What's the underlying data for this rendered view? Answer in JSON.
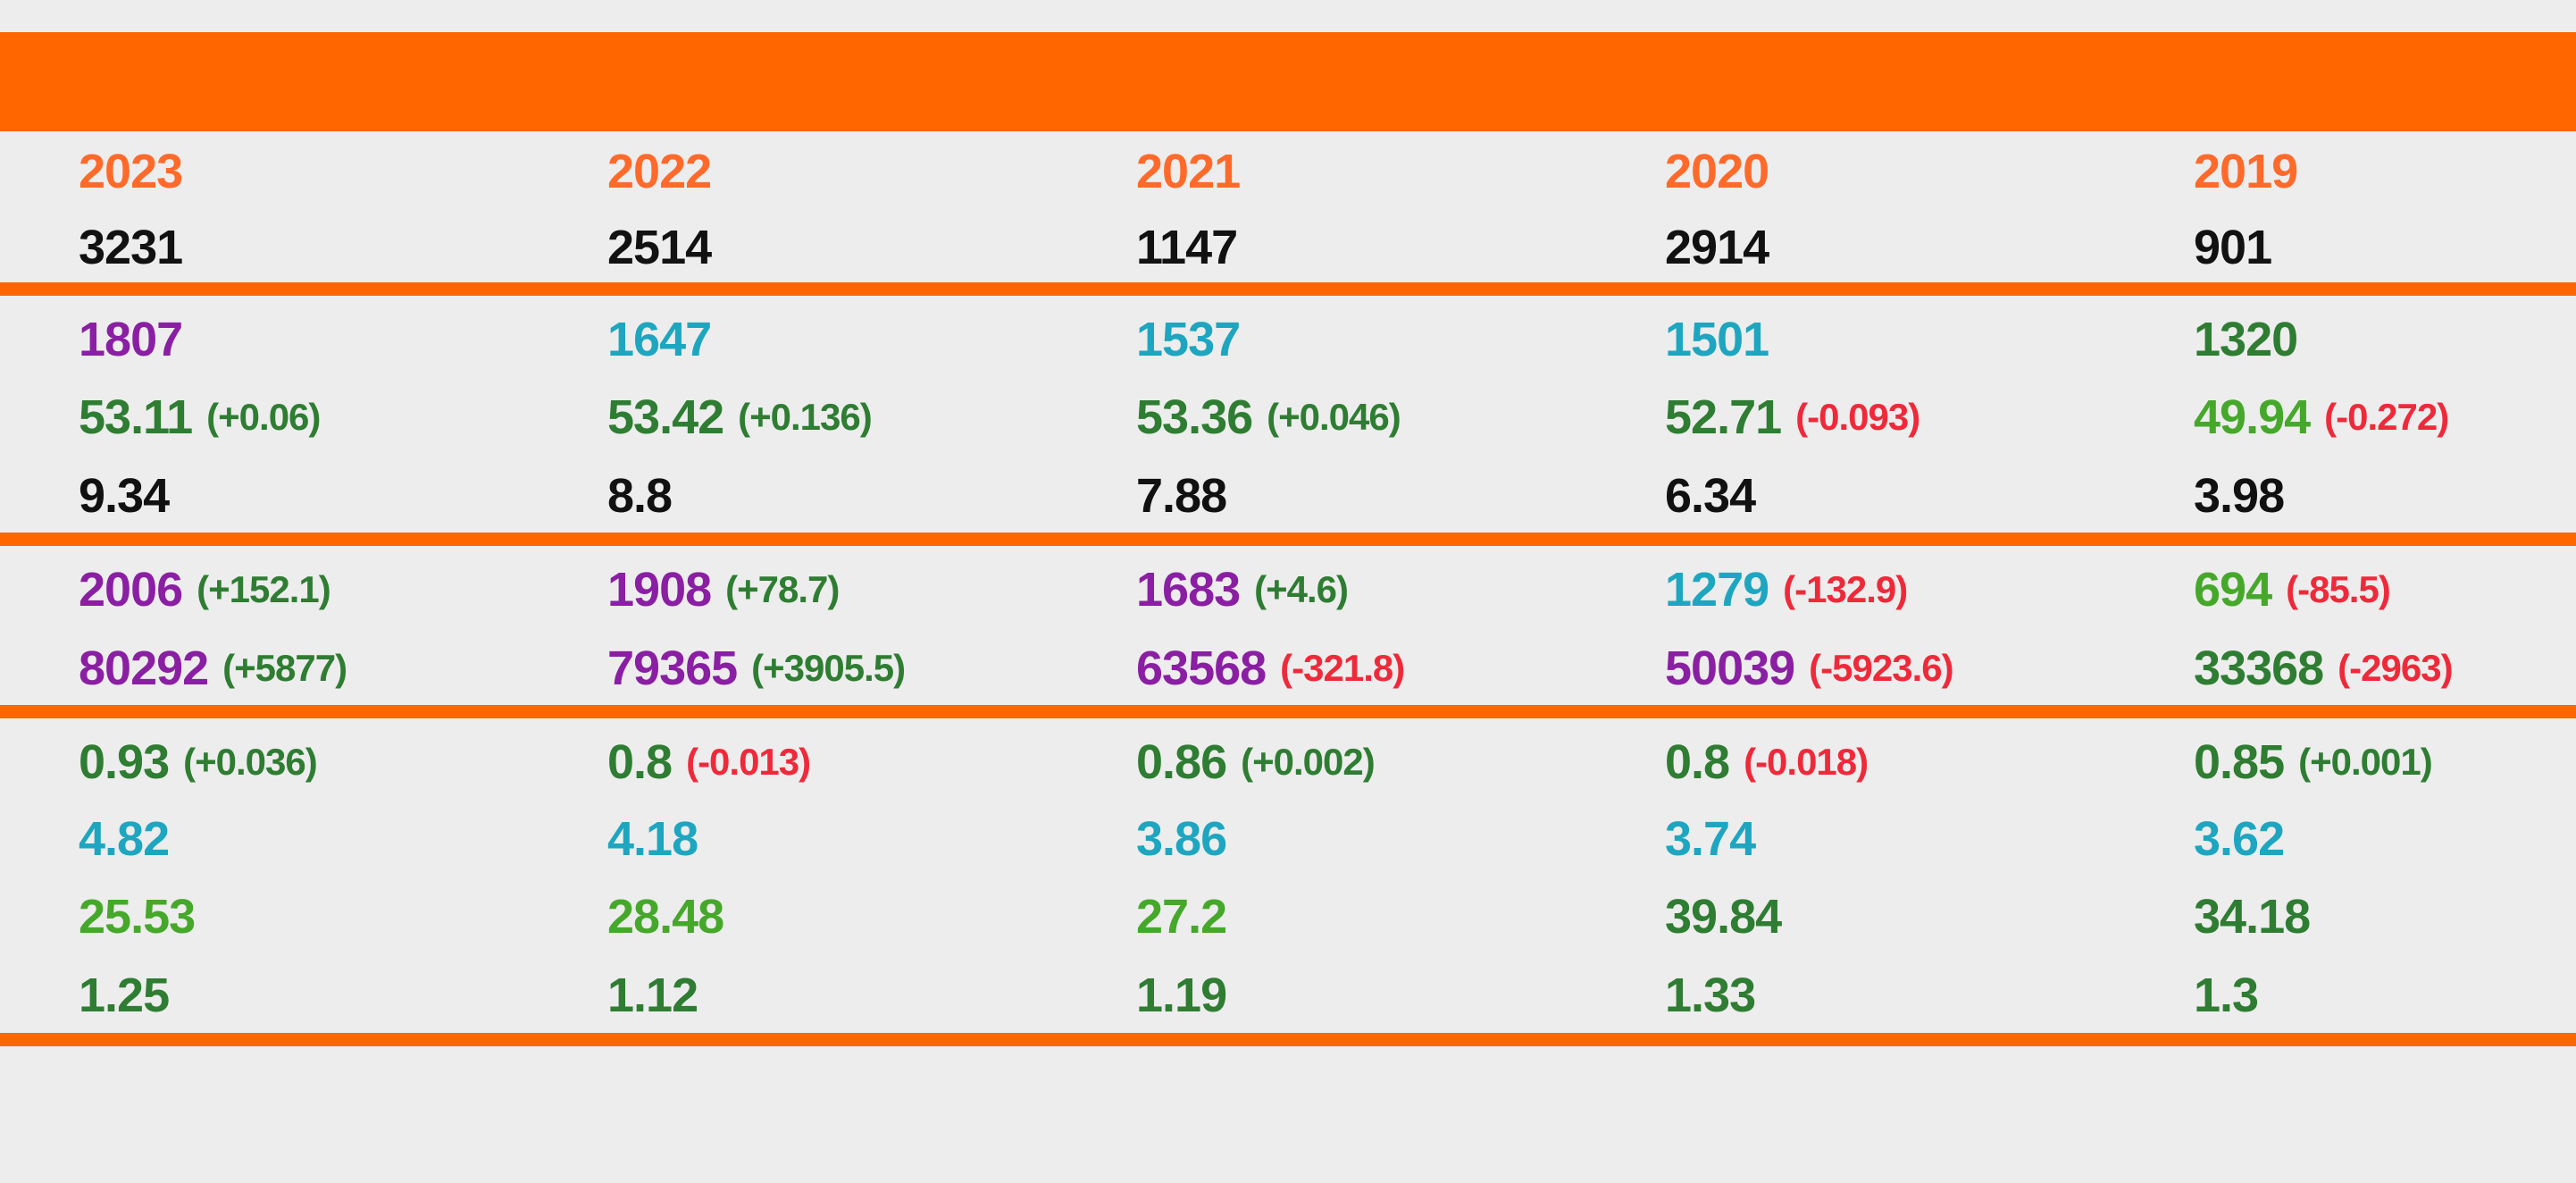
{
  "rows": [
    {
      "cells": [
        {
          "v": "2023",
          "c": "#ff6a2a"
        },
        {
          "v": "2022",
          "c": "#ff6a2a"
        },
        {
          "v": "2021",
          "c": "#ff6a2a"
        },
        {
          "v": "2020",
          "c": "#ff6a2a"
        },
        {
          "v": "2019",
          "c": "#ff6a2a"
        }
      ]
    },
    {
      "cells": [
        {
          "v": "3231",
          "c": "#111111"
        },
        {
          "v": "2514",
          "c": "#111111"
        },
        {
          "v": "1147",
          "c": "#111111"
        },
        {
          "v": "2914",
          "c": "#111111"
        },
        {
          "v": "901",
          "c": "#111111"
        }
      ]
    },
    {
      "cells": [
        {
          "v": "1807",
          "c": "#8a1fa3"
        },
        {
          "v": "1647",
          "c": "#1ea6c0"
        },
        {
          "v": "1537",
          "c": "#1ea6c0"
        },
        {
          "v": "1501",
          "c": "#1ea6c0"
        },
        {
          "v": "1320",
          "c": "#2e7d32"
        }
      ]
    },
    {
      "cells": [
        {
          "v": "53.11",
          "c": "#2e7d32",
          "d": "(+0.06)",
          "dc": "#2e7d32"
        },
        {
          "v": "53.42",
          "c": "#2e7d32",
          "d": "(+0.136)",
          "dc": "#2e7d32"
        },
        {
          "v": "53.36",
          "c": "#2e7d32",
          "d": "(+0.046)",
          "dc": "#2e7d32"
        },
        {
          "v": "52.71",
          "c": "#2e7d32",
          "d": "(-0.093)",
          "dc": "#ee2a3a"
        },
        {
          "v": "49.94",
          "c": "#45a82a",
          "d": "(-0.272)",
          "dc": "#ee2a3a"
        }
      ]
    },
    {
      "cells": [
        {
          "v": "9.34",
          "c": "#111111"
        },
        {
          "v": "8.8",
          "c": "#111111"
        },
        {
          "v": "7.88",
          "c": "#111111"
        },
        {
          "v": "6.34",
          "c": "#111111"
        },
        {
          "v": "3.98",
          "c": "#111111"
        }
      ]
    },
    {
      "cells": [
        {
          "v": "2006",
          "c": "#8a1fa3",
          "d": "(+152.1)",
          "dc": "#2e7d32"
        },
        {
          "v": "1908",
          "c": "#8a1fa3",
          "d": "(+78.7)",
          "dc": "#2e7d32"
        },
        {
          "v": "1683",
          "c": "#8a1fa3",
          "d": "(+4.6)",
          "dc": "#2e7d32"
        },
        {
          "v": "1279",
          "c": "#1ea6c0",
          "d": "(-132.9)",
          "dc": "#ee2a3a"
        },
        {
          "v": "694",
          "c": "#45a82a",
          "d": "(-85.5)",
          "dc": "#ee2a3a"
        }
      ]
    },
    {
      "cells": [
        {
          "v": "80292",
          "c": "#8a1fa3",
          "d": "(+5877)",
          "dc": "#2e7d32"
        },
        {
          "v": "79365",
          "c": "#8a1fa3",
          "d": "(+3905.5)",
          "dc": "#2e7d32"
        },
        {
          "v": "63568",
          "c": "#8a1fa3",
          "d": "(-321.8)",
          "dc": "#ee2a3a"
        },
        {
          "v": "50039",
          "c": "#8a1fa3",
          "d": "(-5923.6)",
          "dc": "#ee2a3a"
        },
        {
          "v": "33368",
          "c": "#2e7d32",
          "d": "(-2963)",
          "dc": "#ee2a3a"
        }
      ]
    },
    {
      "cells": [
        {
          "v": "0.93",
          "c": "#2e7d32",
          "d": "(+0.036)",
          "dc": "#2e7d32"
        },
        {
          "v": "0.8",
          "c": "#2e7d32",
          "d": "(-0.013)",
          "dc": "#ee2a3a"
        },
        {
          "v": "0.86",
          "c": "#2e7d32",
          "d": "(+0.002)",
          "dc": "#2e7d32"
        },
        {
          "v": "0.8",
          "c": "#2e7d32",
          "d": "(-0.018)",
          "dc": "#ee2a3a"
        },
        {
          "v": "0.85",
          "c": "#2e7d32",
          "d": "(+0.001)",
          "dc": "#2e7d32"
        }
      ]
    },
    {
      "cells": [
        {
          "v": "4.82",
          "c": "#1ea6c0"
        },
        {
          "v": "4.18",
          "c": "#1ea6c0"
        },
        {
          "v": "3.86",
          "c": "#1ea6c0"
        },
        {
          "v": "3.74",
          "c": "#1ea6c0"
        },
        {
          "v": "3.62",
          "c": "#1ea6c0"
        }
      ]
    },
    {
      "cells": [
        {
          "v": "25.53",
          "c": "#45a82a"
        },
        {
          "v": "28.48",
          "c": "#45a82a"
        },
        {
          "v": "27.2",
          "c": "#45a82a"
        },
        {
          "v": "39.84",
          "c": "#2e7d32"
        },
        {
          "v": "34.18",
          "c": "#2e7d32"
        }
      ]
    },
    {
      "cells": [
        {
          "v": "1.25",
          "c": "#2e7d32"
        },
        {
          "v": "1.12",
          "c": "#2e7d32"
        },
        {
          "v": "1.19",
          "c": "#2e7d32"
        },
        {
          "v": "1.33",
          "c": "#2e7d32"
        },
        {
          "v": "1.3",
          "c": "#2e7d32"
        }
      ]
    }
  ],
  "colors": {
    "accent_orange": "#ff6600",
    "background": "#ededed",
    "positive": "#2e7d32",
    "negative": "#ee2a3a"
  }
}
